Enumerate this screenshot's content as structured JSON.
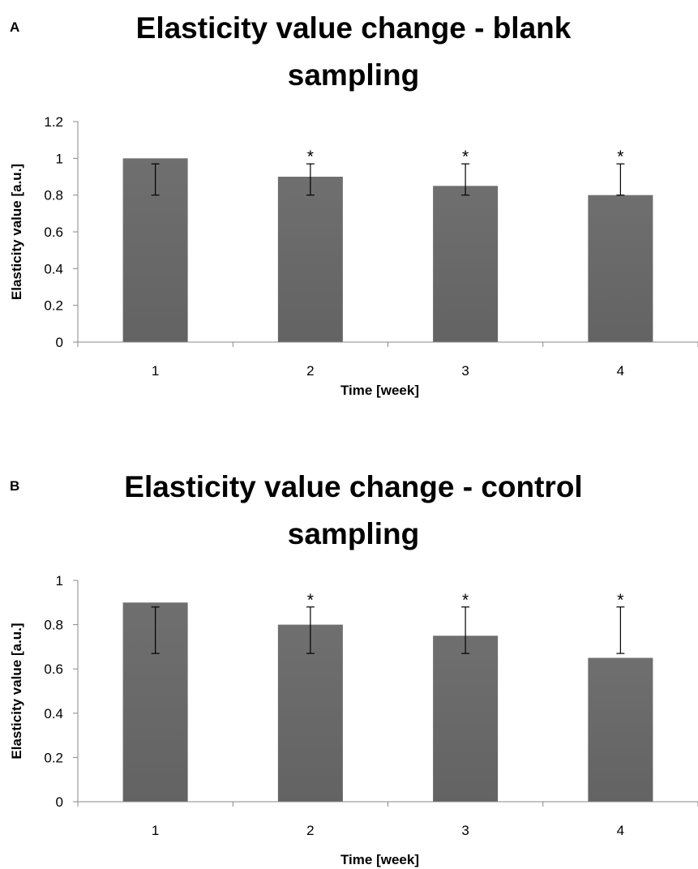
{
  "panels": [
    {
      "letter": "A",
      "chart_data": {
        "type": "bar",
        "title": "Elasticity value change - blank sampling",
        "xlabel": "Time [week]",
        "ylabel": "Elasticity value [a.u.]",
        "categories": [
          "1",
          "2",
          "3",
          "4"
        ],
        "values": [
          1.0,
          0.9,
          0.85,
          0.8
        ],
        "error_low": [
          0.8,
          0.8,
          0.8,
          0.8
        ],
        "error_high": [
          0.97,
          0.97,
          0.97,
          0.97
        ],
        "significance": [
          "",
          "*",
          "*",
          "*"
        ],
        "ylim": [
          0,
          1.2
        ],
        "yticks": [
          "0",
          "0.2",
          "0.4",
          "0.6",
          "0.8",
          "1",
          "1.2"
        ],
        "grid": false,
        "bar_color": "#636363"
      }
    },
    {
      "letter": "B",
      "chart_data": {
        "type": "bar",
        "title": "Elasticity value change - control sampling",
        "xlabel": "Time [week]",
        "ylabel": "Elasticity value [a.u.]",
        "categories": [
          "1",
          "2",
          "3",
          "4"
        ],
        "values": [
          0.9,
          0.8,
          0.75,
          0.65
        ],
        "error_low": [
          0.67,
          0.67,
          0.67,
          0.67
        ],
        "error_high": [
          0.88,
          0.88,
          0.88,
          0.88
        ],
        "significance": [
          "",
          "*",
          "*",
          "*"
        ],
        "ylim": [
          0,
          1
        ],
        "yticks": [
          "0",
          "0.2",
          "0.4",
          "0.6",
          "0.8",
          "1"
        ],
        "grid": false,
        "bar_color": "#636363"
      }
    }
  ]
}
